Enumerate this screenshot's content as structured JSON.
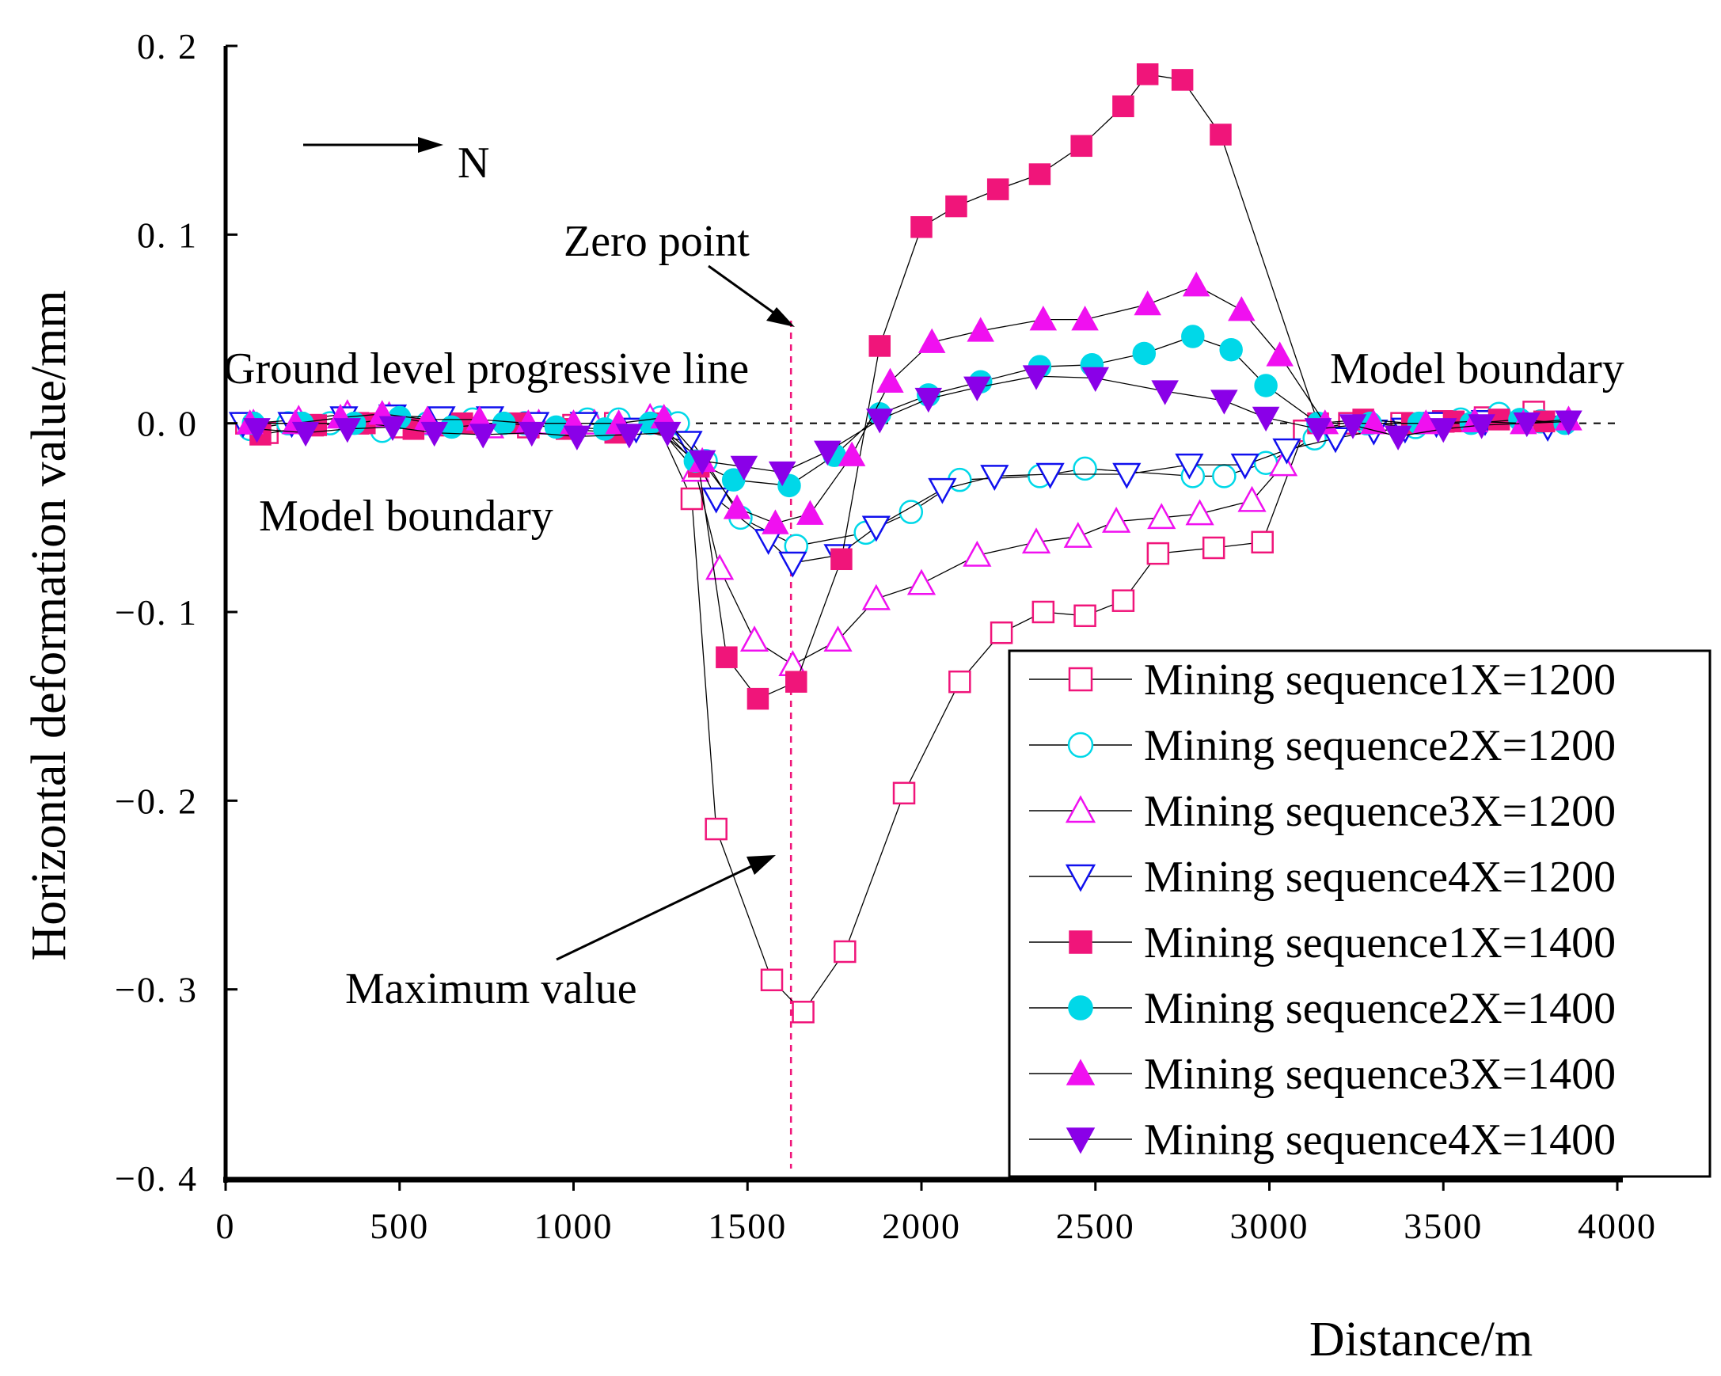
{
  "chart_data": {
    "type": "line",
    "title": "",
    "xlabel": "Distance/m",
    "ylabel": "Horizontal deformation value/mm",
    "xlim": [
      0,
      4000
    ],
    "ylim": [
      -0.4,
      0.2
    ],
    "xticks": [
      0,
      500,
      1000,
      1500,
      2000,
      2500,
      3000,
      3500,
      4000
    ],
    "yticks": [
      0.2,
      0.1,
      0.0,
      -0.1,
      -0.2,
      -0.3,
      -0.4
    ],
    "ytick_labels": [
      "0. 2",
      "0. 1",
      "0. 0",
      "−0. 1",
      "−0. 2",
      "−0. 3",
      "−0. 4"
    ],
    "legend_position": "bottom-right",
    "annotations": {
      "north": "N",
      "zero_point": "Zero point",
      "progressive_line": "Ground level progressive line",
      "model_boundary_right": "Model boundary",
      "model_boundary_left": "Model boundary",
      "maximum_value": "Maximum value"
    },
    "progressive_line_x": 1625,
    "colors": {
      "pink": "#f0157a",
      "cyan": "#00d8e8",
      "magenta": "#f010f0",
      "blue": "#1010ee",
      "purple": "#8a00e8"
    },
    "series": [
      {
        "name": "Mining sequence1X=1200",
        "marker": "square",
        "filled": false,
        "color": "#f0157a",
        "x": [
          60,
          120,
          250,
          380,
          500,
          620,
          740,
          870,
          1000,
          1120,
          1240,
          1340,
          1410,
          1570,
          1660,
          1780,
          1950,
          2110,
          2230,
          2350,
          2470,
          2580,
          2680,
          2840,
          2980,
          3100,
          3230,
          3380,
          3500,
          3620,
          3760
        ],
        "y": [
          0.0,
          -0.005,
          -0.001,
          0.0,
          -0.002,
          -0.001,
          0.0,
          -0.002,
          -0.001,
          0.0,
          0.0,
          -0.04,
          -0.215,
          -0.295,
          -0.312,
          -0.28,
          -0.196,
          -0.137,
          -0.111,
          -0.1,
          -0.102,
          -0.094,
          -0.069,
          -0.066,
          -0.063,
          -0.004,
          0.0,
          0.0,
          0.001,
          0.003,
          0.006
        ]
      },
      {
        "name": "Mining sequence2X=1200",
        "marker": "circle",
        "filled": false,
        "color": "#00d8e8",
        "x": [
          70,
          180,
          300,
          450,
          580,
          710,
          860,
          1040,
          1130,
          1250,
          1300,
          1380,
          1480,
          1640,
          1840,
          1970,
          2110,
          2340,
          2470,
          2780,
          2870,
          2990,
          3130,
          3280,
          3420,
          3550,
          3660,
          3780
        ],
        "y": [
          -0.003,
          0.0,
          0.0,
          -0.004,
          0.0,
          0.002,
          0.0,
          0.002,
          0.002,
          0.003,
          0.0,
          -0.02,
          -0.05,
          -0.065,
          -0.058,
          -0.047,
          -0.03,
          -0.028,
          -0.024,
          -0.028,
          -0.028,
          -0.021,
          -0.008,
          0.0,
          -0.002,
          0.002,
          0.005,
          0.001
        ]
      },
      {
        "name": "Mining sequence3X=1200",
        "marker": "triangle-up",
        "filled": false,
        "color": "#f010f0",
        "x": [
          80,
          210,
          350,
          470,
          600,
          760,
          900,
          1060,
          1220,
          1350,
          1420,
          1520,
          1630,
          1760,
          1870,
          2000,
          2160,
          2330,
          2450,
          2560,
          2690,
          2800,
          2950,
          3040
        ],
        "y": [
          0.0,
          0.002,
          0.005,
          0.004,
          0.0,
          -0.002,
          0.0,
          0.0,
          0.003,
          -0.025,
          -0.077,
          -0.115,
          -0.128,
          -0.115,
          -0.093,
          -0.085,
          -0.07,
          -0.063,
          -0.06,
          -0.052,
          -0.05,
          -0.048,
          -0.041,
          -0.022
        ]
      },
      {
        "name": "Mining sequence4X=1200",
        "marker": "triangle-down",
        "filled": false,
        "color": "#1010ee",
        "x": [
          50,
          190,
          340,
          480,
          620,
          760,
          890,
          1030,
          1180,
          1330,
          1410,
          1560,
          1630,
          1760,
          1870,
          2060,
          2210,
          2370,
          2590,
          2770,
          2930,
          3050,
          3190,
          3300,
          3390,
          3480,
          3620,
          3800
        ],
        "y": [
          0.0,
          0.0,
          0.003,
          0.004,
          0.003,
          0.003,
          0.0,
          0.0,
          -0.003,
          -0.01,
          -0.04,
          -0.062,
          -0.074,
          -0.07,
          -0.055,
          -0.035,
          -0.028,
          -0.027,
          -0.027,
          -0.022,
          -0.022,
          -0.014,
          -0.008,
          -0.004,
          -0.003,
          0.0,
          0.001,
          -0.002
        ]
      },
      {
        "name": "Mining sequence1X=1400",
        "marker": "square",
        "filled": true,
        "color": "#f0157a",
        "x": [
          100,
          260,
          400,
          540,
          680,
          840,
          980,
          1120,
          1240,
          1360,
          1440,
          1530,
          1640,
          1770,
          1880,
          2000,
          2100,
          2220,
          2340,
          2460,
          2580,
          2650,
          2750,
          2860,
          3140,
          3270,
          3410,
          3530,
          3660,
          3790
        ],
        "y": [
          -0.006,
          -0.001,
          0.0,
          -0.003,
          0.0,
          0.0,
          -0.003,
          -0.005,
          0.0,
          -0.023,
          -0.124,
          -0.146,
          -0.137,
          -0.072,
          0.041,
          0.104,
          0.115,
          0.124,
          0.132,
          0.147,
          0.168,
          0.185,
          0.182,
          0.153,
          0.0,
          0.002,
          0.0,
          0.001,
          0.002,
          0.001
        ]
      },
      {
        "name": "Mining sequence2X=1400",
        "marker": "circle",
        "filled": true,
        "color": "#00d8e8",
        "x": [
          80,
          220,
          370,
          500,
          650,
          800,
          950,
          1090,
          1220,
          1350,
          1460,
          1620,
          1750,
          1880,
          2020,
          2170,
          2340,
          2490,
          2640,
          2780,
          2890,
          2990,
          3140,
          3290,
          3430,
          3580,
          3720,
          3850
        ],
        "y": [
          0.0,
          0.0,
          0.0,
          0.003,
          -0.002,
          0.0,
          -0.002,
          -0.003,
          0.0,
          -0.02,
          -0.03,
          -0.033,
          -0.017,
          0.005,
          0.015,
          0.022,
          0.03,
          0.031,
          0.037,
          0.046,
          0.039,
          0.02,
          0.0,
          0.0,
          0.0,
          0.0,
          0.002,
          0.0
        ]
      },
      {
        "name": "Mining sequence3X=1400",
        "marker": "triangle-up",
        "filled": true,
        "color": "#f010f0",
        "x": [
          70,
          200,
          330,
          450,
          580,
          730,
          870,
          1000,
          1130,
          1260,
          1370,
          1470,
          1580,
          1680,
          1800,
          1910,
          2030,
          2170,
          2350,
          2470,
          2650,
          2790,
          2920,
          3030,
          3160,
          3300,
          3450,
          3590,
          3730,
          3860
        ],
        "y": [
          0.0,
          0.0,
          0.003,
          0.005,
          0.002,
          0.002,
          0.0,
          0.0,
          0.0,
          0.003,
          -0.02,
          -0.045,
          -0.053,
          -0.048,
          -0.017,
          0.022,
          0.043,
          0.049,
          0.055,
          0.055,
          0.063,
          0.073,
          0.06,
          0.036,
          0.0,
          0.0,
          0.0,
          0.001,
          0.0,
          0.002
        ]
      },
      {
        "name": "Mining sequence4X=1400",
        "marker": "triangle-down",
        "filled": true,
        "color": "#8a00e8",
        "x": [
          90,
          230,
          350,
          480,
          600,
          740,
          880,
          1010,
          1160,
          1270,
          1370,
          1490,
          1600,
          1730,
          1880,
          2020,
          2160,
          2330,
          2500,
          2700,
          2870,
          2990,
          3140,
          3240,
          3370,
          3500,
          3610,
          3740,
          3860
        ],
        "y": [
          -0.003,
          -0.005,
          -0.003,
          -0.002,
          -0.005,
          -0.006,
          -0.005,
          -0.007,
          -0.006,
          -0.005,
          -0.02,
          -0.023,
          -0.026,
          -0.015,
          0.002,
          0.013,
          0.019,
          0.025,
          0.024,
          0.017,
          0.012,
          0.003,
          -0.003,
          -0.001,
          -0.007,
          -0.003,
          -0.001,
          0.0,
          0.001
        ]
      }
    ]
  }
}
